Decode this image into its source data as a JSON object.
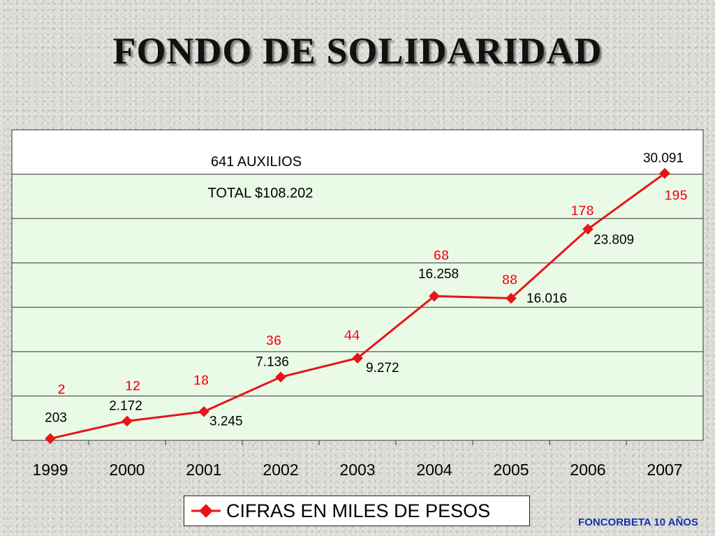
{
  "title": "FONDO DE SOLIDARIDAD",
  "footer": "FONCORBETA 10 AÑOS",
  "chart_data": {
    "type": "line",
    "categories": [
      "1999",
      "2000",
      "2001",
      "2002",
      "2003",
      "2004",
      "2005",
      "2006",
      "2007"
    ],
    "ylim": [
      0,
      35000
    ],
    "grid": true,
    "legend_position": "bottom",
    "colors": {
      "line": "#e8141a",
      "count_label": "#e8141a",
      "plot_band_top": "#ffffff",
      "plot_band": "#e9fae6"
    },
    "series": [
      {
        "name": "CIFRAS EN MILES DE PESOS",
        "values": [
          203,
          2172,
          3245,
          7136,
          9272,
          16258,
          16016,
          23809,
          30091
        ],
        "labels": [
          "203",
          "2.172",
          "3.245",
          "7.136",
          "9.272",
          "16.258",
          "16.016",
          "23.809",
          "30.091"
        ]
      }
    ],
    "counts": [
      "2",
      "12",
      "18",
      "36",
      "44",
      "68",
      "88",
      "178",
      "195"
    ],
    "annotations": [
      "641 AUXILIOS",
      "TOTAL $108.202"
    ]
  }
}
